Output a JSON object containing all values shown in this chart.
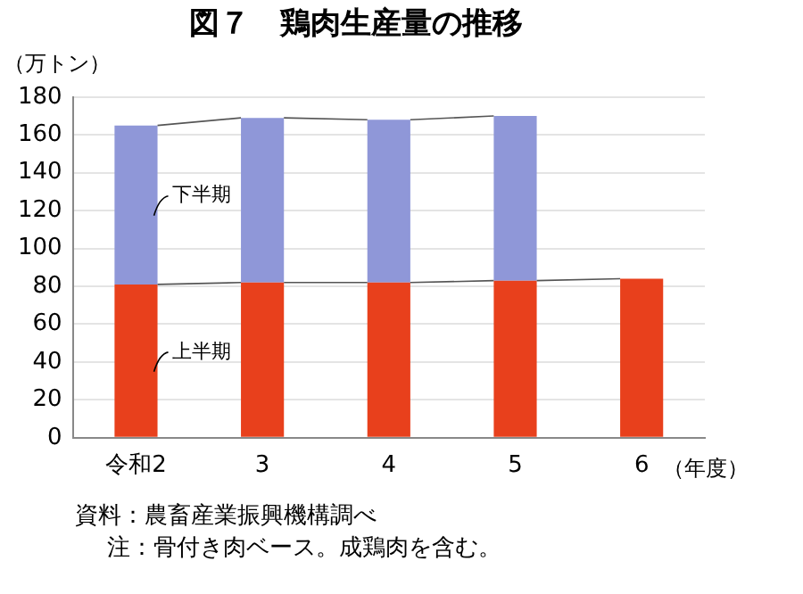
{
  "chart_data": {
    "type": "bar",
    "title": "図７　鶏肉生産量の推移",
    "ylabel": "（万トン）",
    "xlabel": "（年度）",
    "categories": [
      "令和2",
      "3",
      "4",
      "5",
      "6"
    ],
    "stacked": true,
    "series": [
      {
        "name": "上半期",
        "color": "#e8401c",
        "values": [
          81,
          82,
          82,
          83,
          84
        ]
      },
      {
        "name": "下半期",
        "color": "#8f97d8",
        "values": [
          84,
          87,
          86,
          87,
          null
        ]
      }
    ],
    "ylim": [
      0,
      180
    ],
    "yticks": [
      0,
      20,
      40,
      60,
      80,
      100,
      120,
      140,
      160,
      180
    ],
    "grid": "y",
    "legend": false,
    "annotations": [
      "資料：農畜産業振興機構調べ",
      "注：骨付き肉ベース。成鶏肉を含む。"
    ]
  }
}
